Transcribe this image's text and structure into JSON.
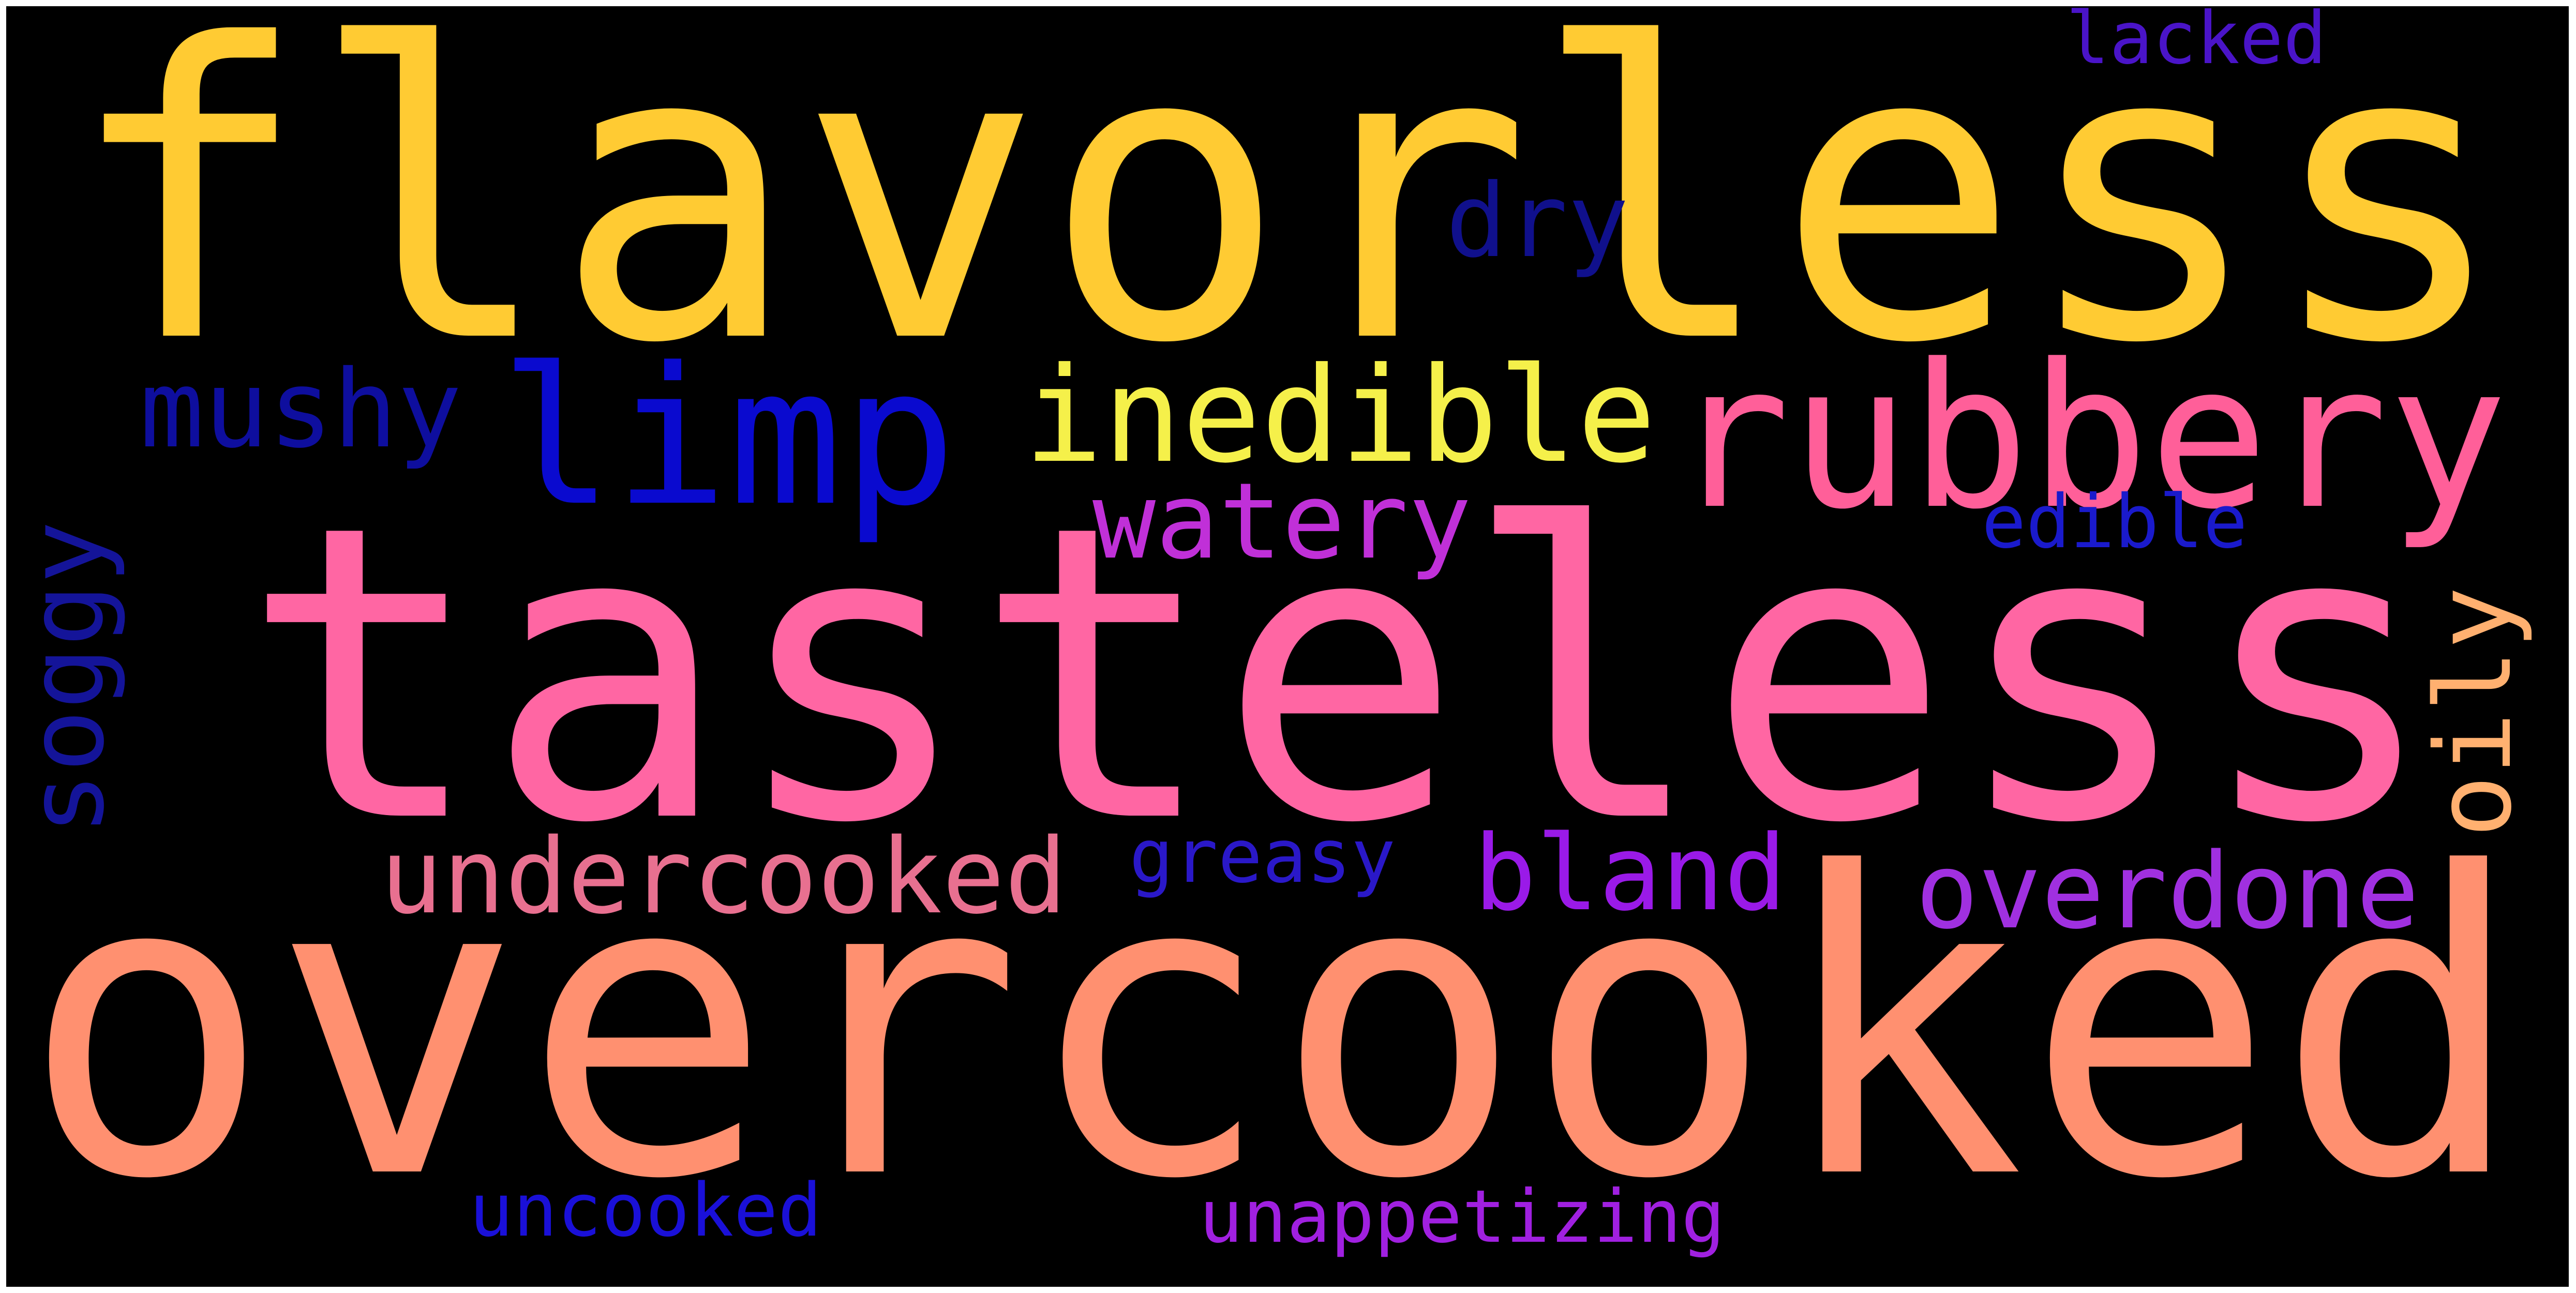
{
  "background_color": "#000000",
  "words": [
    {
      "text": "flavorless",
      "color": "#FFCB33",
      "orientation": "horizontal"
    },
    {
      "text": "tasteless",
      "color": "#FF66A3",
      "orientation": "horizontal"
    },
    {
      "text": "overcooked",
      "color": "#FF9070",
      "orientation": "horizontal"
    },
    {
      "text": "limp",
      "color": "#0A0ACF",
      "orientation": "horizontal"
    },
    {
      "text": "rubbery",
      "color": "#FF5F99",
      "orientation": "horizontal"
    },
    {
      "text": "inedible",
      "color": "#F5F04A",
      "orientation": "horizontal"
    },
    {
      "text": "mushy",
      "color": "#0E0E9E",
      "orientation": "horizontal"
    },
    {
      "text": "dry",
      "color": "#10108C",
      "orientation": "horizontal"
    },
    {
      "text": "watery",
      "color": "#C030D8",
      "orientation": "horizontal"
    },
    {
      "text": "edible",
      "color": "#1A1ACC",
      "orientation": "horizontal"
    },
    {
      "text": "soggy",
      "color": "#141499",
      "orientation": "vertical"
    },
    {
      "text": "oily",
      "color": "#FFB070",
      "orientation": "vertical"
    },
    {
      "text": "undercooked",
      "color": "#E87090",
      "orientation": "horizontal"
    },
    {
      "text": "greasy",
      "color": "#2A18C8",
      "orientation": "horizontal"
    },
    {
      "text": "bland",
      "color": "#9A1AE8",
      "orientation": "horizontal"
    },
    {
      "text": "overdone",
      "color": "#A030E0",
      "orientation": "horizontal"
    },
    {
      "text": "uncooked",
      "color": "#1A10D8",
      "orientation": "horizontal"
    },
    {
      "text": "unappetizing",
      "color": "#A020E0",
      "orientation": "horizontal"
    },
    {
      "text": "lacked",
      "color": "#4A14C8",
      "orientation": "horizontal"
    }
  ]
}
